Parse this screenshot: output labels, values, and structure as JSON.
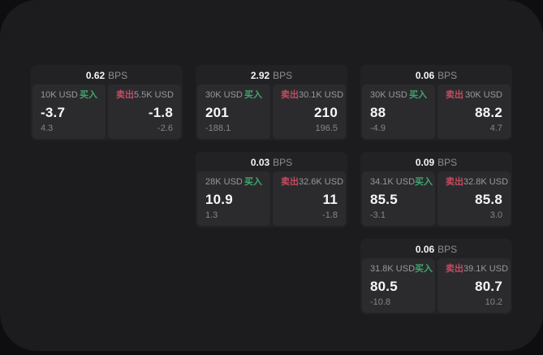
{
  "labels": {
    "bps_unit": "BPS",
    "buy": "买入",
    "sell": "卖出"
  },
  "colors": {
    "page_bg": "#0e0e10",
    "window_bg": "#1c1c1e",
    "card_bg": "#222225",
    "panel_bg": "#2b2b2e",
    "buy_green": "#3fa66e",
    "sell_red": "#c74a60"
  },
  "cards": [
    {
      "bps": "0.62",
      "buy": {
        "amount": "10K USD",
        "price": "-3.7",
        "sub": "4.3"
      },
      "sell": {
        "amount": "5.5K USD",
        "price": "-1.8",
        "sub": "-2.6"
      }
    },
    {
      "bps": "2.92",
      "buy": {
        "amount": "30K USD",
        "price": "201",
        "sub": "-188.1"
      },
      "sell": {
        "amount": "30.1K USD",
        "price": "210",
        "sub": "196.5"
      }
    },
    {
      "bps": "0.06",
      "buy": {
        "amount": "30K USD",
        "price": "88",
        "sub": "-4.9"
      },
      "sell": {
        "amount": "30K USD",
        "price": "88.2",
        "sub": "4.7"
      }
    },
    {
      "bps": "0.03",
      "buy": {
        "amount": "28K USD",
        "price": "10.9",
        "sub": "1.3"
      },
      "sell": {
        "amount": "32.6K USD",
        "price": "11",
        "sub": "-1.8"
      }
    },
    {
      "bps": "0.09",
      "buy": {
        "amount": "34.1K USD",
        "price": "85.5",
        "sub": "-3.1"
      },
      "sell": {
        "amount": "32.8K USD",
        "price": "85.8",
        "sub": "3.0"
      }
    },
    {
      "bps": "0.06",
      "buy": {
        "amount": "31.8K USD",
        "price": "80.5",
        "sub": "-10.8"
      },
      "sell": {
        "amount": "39.1K USD",
        "price": "80.7",
        "sub": "10.2"
      }
    }
  ]
}
